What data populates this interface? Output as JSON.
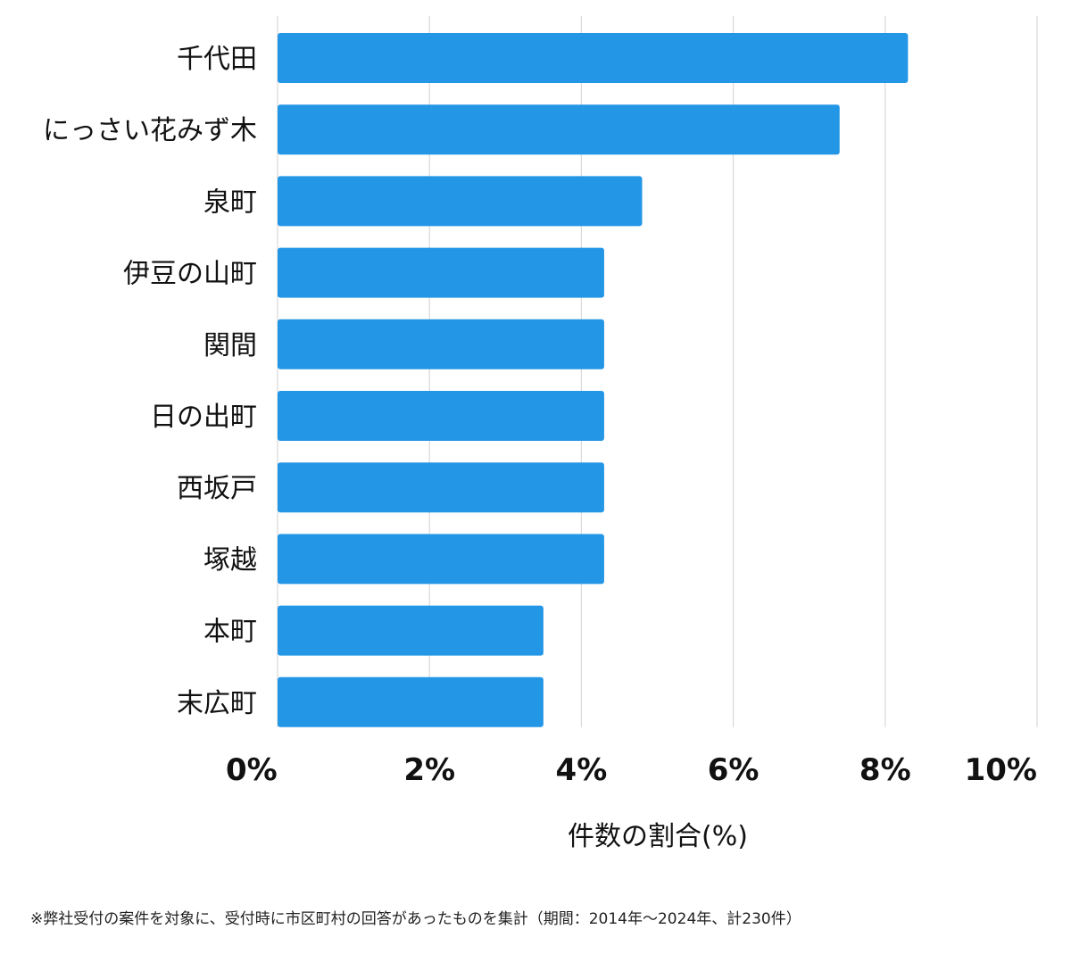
{
  "chart_data": {
    "type": "bar",
    "orientation": "horizontal",
    "categories": [
      "千代田",
      "にっさい花みず木",
      "泉町",
      "伊豆の山町",
      "関間",
      "日の出町",
      "西坂戸",
      "塚越",
      "本町",
      "末広町"
    ],
    "values": [
      8.3,
      7.4,
      4.8,
      4.3,
      4.3,
      4.3,
      4.3,
      4.3,
      3.5,
      3.5
    ],
    "xlim": [
      0,
      10
    ],
    "xticks": [
      0,
      2,
      4,
      6,
      8,
      10
    ],
    "tick_labels": [
      "0%",
      "2%",
      "4%",
      "6%",
      "8%",
      "10%"
    ],
    "xlabel": "件数の割合(%)",
    "ylabel": "",
    "grid": true,
    "bar_color": "#2496e6",
    "grid_color": "#d9d9d9"
  },
  "footnote": "※弊社受付の案件を対象に、受付時に市区町村の回答があったものを集計（期間：2014年〜2024年、計230件）"
}
